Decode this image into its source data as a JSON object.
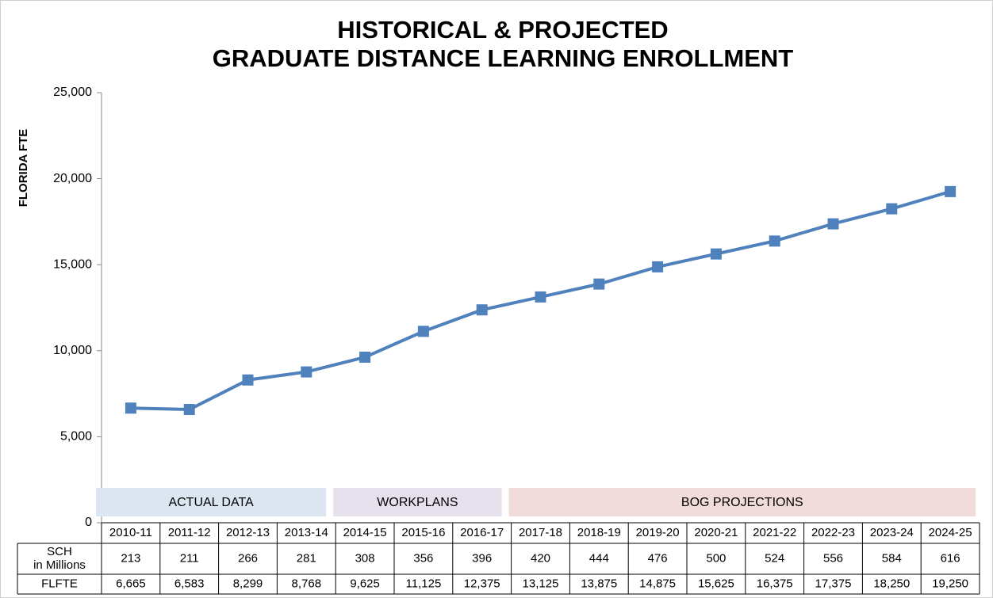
{
  "chart_data": {
    "type": "line",
    "title": [
      "HISTORICAL & PROJECTED",
      "GRADUATE DISTANCE LEARNING ENROLLMENT"
    ],
    "y_label": "FLORIDA FTE",
    "categories": [
      "2010-11",
      "2011-12",
      "2012-13",
      "2013-14",
      "2014-15",
      "2015-16",
      "2016-17",
      "2017-18",
      "2018-19",
      "2019-20",
      "2020-21",
      "2021-22",
      "2022-23",
      "2023-24",
      "2024-25"
    ],
    "series": [
      {
        "name": "FLFTE",
        "color": "#4f81bd",
        "values": [
          6665,
          6583,
          8299,
          8768,
          9625,
          11125,
          12375,
          13125,
          13875,
          14875,
          15625,
          16375,
          17375,
          18250,
          19250
        ],
        "value_labels": [
          "6,665",
          "6,583",
          "8,299",
          "8,768",
          "9,625",
          "11,125",
          "12,375",
          "13,125",
          "13,875",
          "14,875",
          "15,625",
          "16,375",
          "17,375",
          "18,250",
          "19,250"
        ]
      }
    ],
    "table_rows": [
      {
        "label": [
          "SCH",
          "in Millions"
        ],
        "values": [
          213,
          211,
          266,
          281,
          308,
          356,
          396,
          420,
          444,
          476,
          500,
          524,
          556,
          584,
          616
        ]
      }
    ],
    "phases": [
      {
        "label": "ACTUAL DATA",
        "from": "2010-11",
        "to": "2013-14",
        "color": "#dce6f0"
      },
      {
        "label": "WORKPLANS",
        "from": "2014-15",
        "to": "2016-17",
        "color": "#e6e0ec"
      },
      {
        "label": "BOG PROJECTIONS",
        "from": "2017-18",
        "to": "2024-25",
        "color": "#f2dcdb"
      }
    ],
    "ylim": [
      0,
      25000
    ],
    "yticks": [
      0,
      {
        "value": 5000,
        "label": "5,000"
      },
      {
        "value": 10000,
        "label": "10,000"
      },
      {
        "value": 15000,
        "label": "15,000"
      },
      {
        "value": 20000,
        "label": "20,000"
      },
      {
        "value": 25000,
        "label": "25,000"
      }
    ]
  }
}
